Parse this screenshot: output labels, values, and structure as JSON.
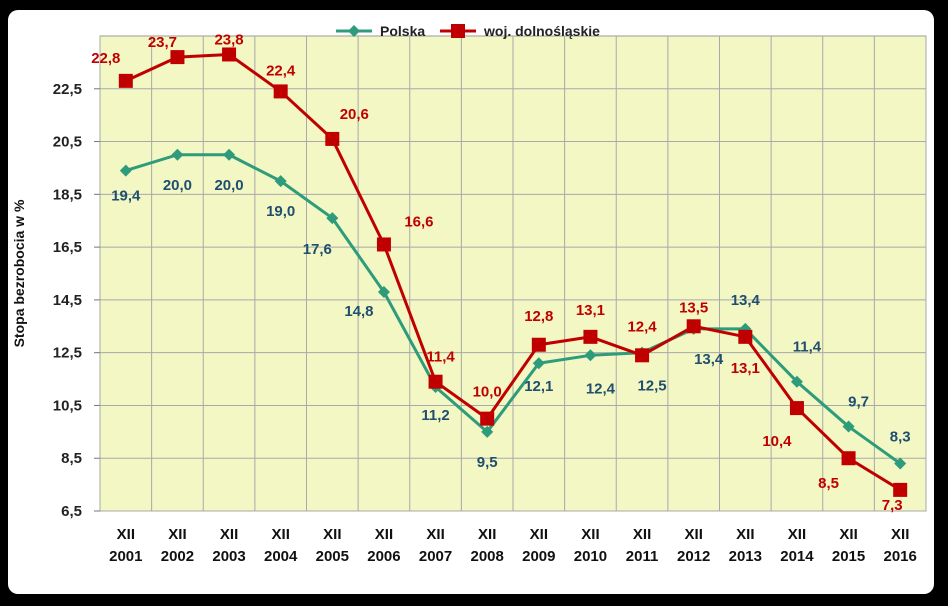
{
  "chart_data": {
    "type": "line",
    "ylabel": "Stopa bezrobocia w %",
    "ylim": [
      6.5,
      24.5
    ],
    "yticks": [
      "6,5",
      "8,5",
      "10,5",
      "12,5",
      "14,5",
      "16,5",
      "18,5",
      "20,5",
      "22,5"
    ],
    "ytick_values": [
      6.5,
      8.5,
      10.5,
      12.5,
      14.5,
      16.5,
      18.5,
      20.5,
      22.5
    ],
    "categories": [
      [
        "XII",
        "2001"
      ],
      [
        "XII",
        "2002"
      ],
      [
        "XII",
        "2003"
      ],
      [
        "XII",
        "2004"
      ],
      [
        "XII",
        "2005"
      ],
      [
        "XII",
        "2006"
      ],
      [
        "XII",
        "2007"
      ],
      [
        "XII",
        "2008"
      ],
      [
        "XII",
        "2009"
      ],
      [
        "XII",
        "2010"
      ],
      [
        "XII",
        "2011"
      ],
      [
        "XII",
        "2012"
      ],
      [
        "XII",
        "2013"
      ],
      [
        "XII",
        "2014"
      ],
      [
        "XII",
        "2015"
      ],
      [
        "XII",
        "2016"
      ]
    ],
    "grid": true,
    "legend_position": "top-center",
    "plot_background": "#f2f7c4",
    "series": [
      {
        "name": "Polska",
        "color": "#2e9b7a",
        "label_color": "#1f4e6e",
        "marker": "diamond",
        "values": [
          19.4,
          20.0,
          20.0,
          19.0,
          17.6,
          14.8,
          11.2,
          9.5,
          12.1,
          12.4,
          12.5,
          13.4,
          13.4,
          11.4,
          9.7,
          8.3
        ],
        "labels": [
          "19,4",
          "20,0",
          "20,0",
          "19,0",
          "17,6",
          "14,8",
          "11,2",
          "9,5",
          "12,1",
          "12,4",
          "12,5",
          "13,4",
          "13,4",
          "11,4",
          "9,7",
          "8,3"
        ]
      },
      {
        "name": "woj. dolnośląskie",
        "color": "#c00000",
        "label_color": "#c00000",
        "marker": "square",
        "values": [
          22.8,
          23.7,
          23.8,
          22.4,
          20.6,
          16.6,
          11.4,
          10.0,
          12.8,
          13.1,
          12.4,
          13.5,
          13.1,
          10.4,
          8.5,
          7.3
        ],
        "labels": [
          "22,8",
          "23,7",
          "23,8",
          "22,4",
          "20,6",
          "16,6",
          "11,4",
          "10,0",
          "12,8",
          "13,1",
          "12,4",
          "13,5",
          "13,1",
          "10,4",
          "8,5",
          "7,3"
        ]
      }
    ]
  }
}
